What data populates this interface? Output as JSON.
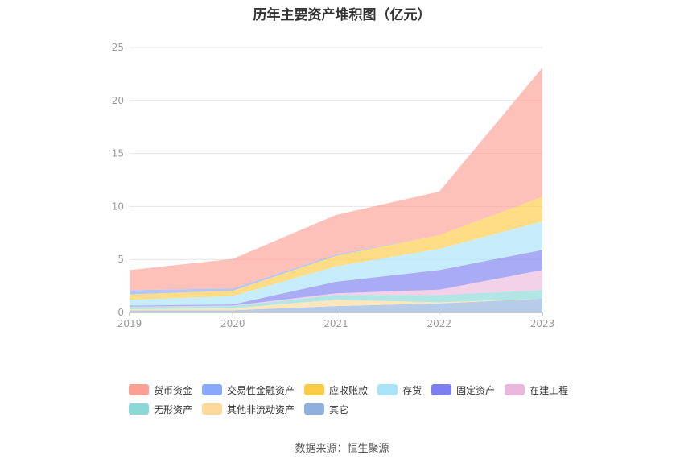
{
  "title": "历年主要资产堆积图（亿元）",
  "source": "数据来源：恒生聚源",
  "chart_data": {
    "type": "area",
    "stacked": true,
    "title": "历年主要资产堆积图（亿元）",
    "x": [
      "2019",
      "2020",
      "2021",
      "2022",
      "2023"
    ],
    "ylim": [
      0,
      25
    ],
    "yticks": [
      "0",
      "5",
      "10",
      "15",
      "20",
      "25"
    ],
    "series": [
      {
        "name": "其它",
        "color": "#8fb0dc",
        "values": [
          0.2,
          0.2,
          0.6,
          0.85,
          1.3
        ]
      },
      {
        "name": "其他非流动资产",
        "color": "#ffd99a",
        "values": [
          0.1,
          0.2,
          0.6,
          0.1,
          0.0
        ]
      },
      {
        "name": "无形资产",
        "color": "#88d9d7",
        "values": [
          0.2,
          0.2,
          0.45,
          0.7,
          0.8
        ]
      },
      {
        "name": "在建工程",
        "color": "#ebb8dd",
        "values": [
          0.05,
          0.05,
          0.15,
          0.5,
          1.9
        ]
      },
      {
        "name": "固定资产",
        "color": "#7b7ff0",
        "values": [
          0.1,
          0.1,
          1.1,
          1.85,
          1.9
        ]
      },
      {
        "name": "存货",
        "color": "#a9e3fc",
        "values": [
          0.55,
          0.8,
          1.45,
          2.0,
          2.7
        ]
      },
      {
        "name": "应收账款",
        "color": "#fecb45",
        "values": [
          0.5,
          0.5,
          1.0,
          1.3,
          2.3
        ]
      },
      {
        "name": "交易性金融资产",
        "color": "#89a7fb",
        "values": [
          0.4,
          0.2,
          0.1,
          0.0,
          0.0
        ]
      },
      {
        "name": "货币资金",
        "color": "#fd9f93",
        "values": [
          1.9,
          2.8,
          3.75,
          4.1,
          12.2
        ]
      }
    ],
    "legend": [
      {
        "name": "货币资金",
        "color": "#fd9f93"
      },
      {
        "name": "交易性金融资产",
        "color": "#89a7fb"
      },
      {
        "name": "应收账款",
        "color": "#fecb45"
      },
      {
        "name": "存货",
        "color": "#a9e3fc"
      },
      {
        "name": "固定资产",
        "color": "#7b7ff0"
      },
      {
        "name": "在建工程",
        "color": "#ebb8dd"
      },
      {
        "name": "无形资产",
        "color": "#88d9d7"
      },
      {
        "name": "其他非流动资产",
        "color": "#ffd99a"
      },
      {
        "name": "其它",
        "color": "#8fb0dc"
      }
    ]
  }
}
